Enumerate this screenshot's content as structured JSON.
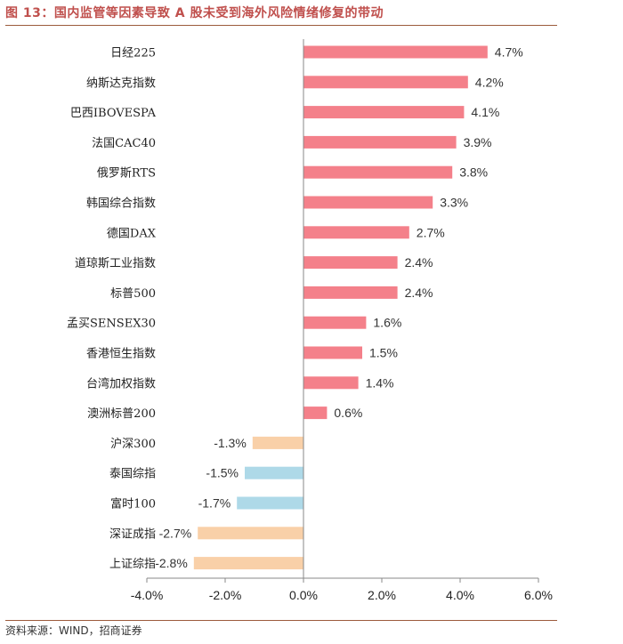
{
  "title": "图 13：国内监管等因素导致 A 股未受到海外风险情绪修复的带动",
  "source": "资料来源：WIND，招商证券",
  "chart_data": {
    "type": "bar",
    "orientation": "horizontal",
    "categories": [
      "日经225",
      "纳斯达克指数",
      "巴西IBOVESPA",
      "法国CAC40",
      "俄罗斯RTS",
      "韩国综合指数",
      "德国DAX",
      "道琼斯工业指数",
      "标普500",
      "孟买SENSEX30",
      "香港恒生指数",
      "台湾加权指数",
      "澳洲标普200",
      "沪深300",
      "泰国综指",
      "富时100",
      "深证成指",
      "上证综指"
    ],
    "values": [
      4.7,
      4.2,
      4.1,
      3.9,
      3.8,
      3.3,
      2.7,
      2.4,
      2.4,
      1.6,
      1.5,
      1.4,
      0.6,
      -1.3,
      -1.5,
      -1.7,
      -2.7,
      -2.8
    ],
    "value_labels": [
      "4.7%",
      "4.2%",
      "4.1%",
      "3.9%",
      "3.8%",
      "3.3%",
      "2.7%",
      "2.4%",
      "2.4%",
      "1.6%",
      "1.5%",
      "1.4%",
      "0.6%",
      "-1.3%",
      "-1.5%",
      "-1.7%",
      "-2.7%",
      "-2.8%"
    ],
    "colors": [
      "#f4808a",
      "#f4808a",
      "#f4808a",
      "#f4808a",
      "#f4808a",
      "#f4808a",
      "#f4808a",
      "#f4808a",
      "#f4808a",
      "#f4808a",
      "#f4808a",
      "#f4808a",
      "#f4808a",
      "#f9d0a8",
      "#aed9e8",
      "#aed9e8",
      "#f9d0a8",
      "#f9d0a8"
    ],
    "xlim": [
      -4.0,
      6.0
    ],
    "xticks": [
      -4.0,
      -2.0,
      0.0,
      2.0,
      4.0,
      6.0
    ],
    "xtick_labels": [
      "-4.0%",
      "-2.0%",
      "0.0%",
      "2.0%",
      "4.0%",
      "6.0%"
    ],
    "xlabel": "",
    "ylabel": "",
    "grid": false
  }
}
